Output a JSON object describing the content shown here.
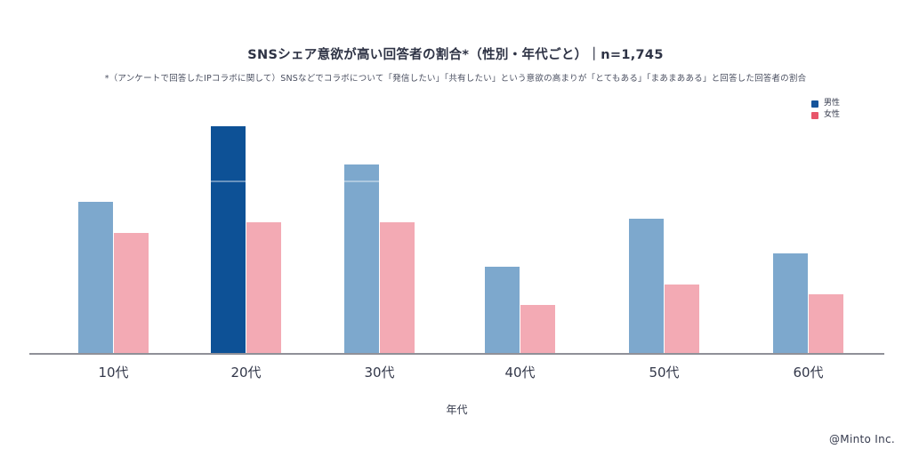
{
  "title": "SNSシェア意欲が高い回答者の割合*（性別・年代ごと）｜n=1,745",
  "subtitle": "*（アンケートで回答したIPコラボに関して）SNSなどでコラボについて「発信したい」「共有したい」という意欲の高まりが「とてもある」「まあまあある」と回答した回答者の割合",
  "footer": "@Minto Inc.",
  "legend": [
    {
      "label": "男性",
      "color": "#15549b"
    },
    {
      "label": "女性",
      "color": "#e8556a"
    }
  ],
  "colors": {
    "male_bar": "#7da8cd",
    "male_bar_highlight": "#0d5196",
    "female_bar": "#f3aab4",
    "axis_line": "#8f9098",
    "text": "#33384a"
  },
  "chart_data": {
    "type": "bar",
    "title": "SNSシェア意欲が高い回答者の割合*（性別・年代ごと）｜n=1,745",
    "subtitle": "*（アンケートで回答したIPコラボに関して）SNSなどでコラボについて「発信したい」「共有したい」という意欲の高まりが「とてもある」「まあまあある」と回答した回答者の割合",
    "categories": [
      "10代",
      "20代",
      "30代",
      "40代",
      "50代",
      "60代"
    ],
    "series": [
      {
        "name": "男性",
        "values": [
          44,
          66,
          55,
          25,
          39,
          29
        ]
      },
      {
        "name": "女性",
        "values": [
          35,
          38,
          38,
          14,
          20,
          17
        ]
      }
    ],
    "xlabel": "年代",
    "ylabel": "",
    "ylim": [
      0,
      75
    ],
    "grid": false,
    "legend_position": "top-right",
    "highlight": {
      "series": "男性",
      "category": "20代"
    }
  }
}
